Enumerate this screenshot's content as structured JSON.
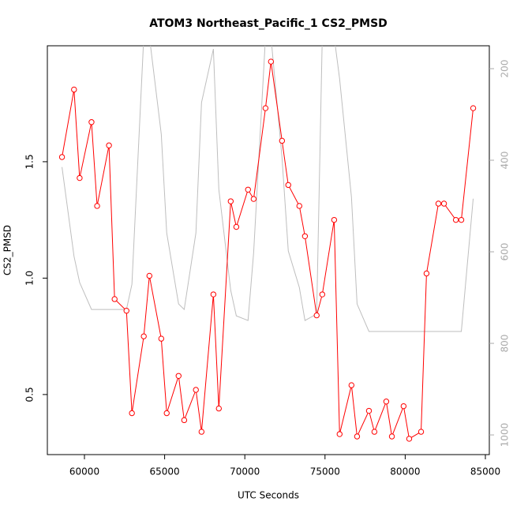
{
  "chart_data": {
    "type": "line",
    "title": "ATOM3 Northeast_Pacific_1 CS2_PMSD",
    "xlabel": "UTC Seconds",
    "ylabel": "CS2_PMSD",
    "x": [
      58600,
      59350,
      59700,
      60440,
      60790,
      61530,
      61880,
      62620,
      62960,
      63700,
      64050,
      64790,
      65130,
      65870,
      66220,
      66950,
      67300,
      68040,
      68380,
      69120,
      69470,
      70200,
      70550,
      71290,
      71630,
      72320,
      72710,
      73400,
      73750,
      74480,
      74830,
      75570,
      75910,
      76650,
      77000,
      77740,
      78080,
      78820,
      79170,
      79900,
      80250,
      80990,
      81330,
      82070,
      82420,
      83160,
      83500,
      84240
    ],
    "series": [
      {
        "color": "#ff0000",
        "values": [
          1.52,
          1.81,
          1.43,
          1.67,
          1.31,
          1.57,
          0.91,
          0.86,
          0.42,
          0.75,
          1.01,
          0.74,
          0.42,
          0.58,
          0.39,
          0.52,
          0.34,
          0.93,
          0.44,
          1.33,
          1.22,
          1.38,
          1.34,
          1.73,
          1.93,
          1.59,
          1.4,
          1.31,
          1.18,
          0.84,
          0.93,
          1.25,
          0.33,
          0.54,
          0.32,
          0.43,
          0.34,
          0.47,
          0.32,
          0.45,
          0.31,
          0.34,
          1.02,
          1.32,
          1.32,
          1.25,
          1.25,
          1.73
        ]
      },
      {
        "color": "#bebebe",
        "axis": "y2",
        "values": [
          415,
          610,
          667,
          726,
          726,
          726,
          726,
          726,
          671,
          130,
          130,
          343,
          559,
          714,
          726,
          559,
          274,
          157,
          464,
          684,
          740,
          750,
          602,
          130,
          130,
          395,
          598,
          678,
          750,
          736,
          130,
          130,
          222,
          481,
          714,
          774,
          774,
          774,
          774,
          774,
          774,
          774,
          774,
          774,
          774,
          774,
          774,
          484
        ]
      }
    ],
    "xlim": [
      57687,
      85246
    ],
    "xticks": [
      60000,
      65000,
      70000,
      75000,
      80000,
      85000
    ],
    "ylim": [
      0.242,
      1.998
    ],
    "yticks": [
      0.5,
      {
        "value": 1,
        "label": "1.0"
      },
      1.5
    ],
    "y2lim": [
      1043,
      150
    ],
    "y2ticks": [
      200,
      400,
      600,
      800,
      1000
    ]
  }
}
